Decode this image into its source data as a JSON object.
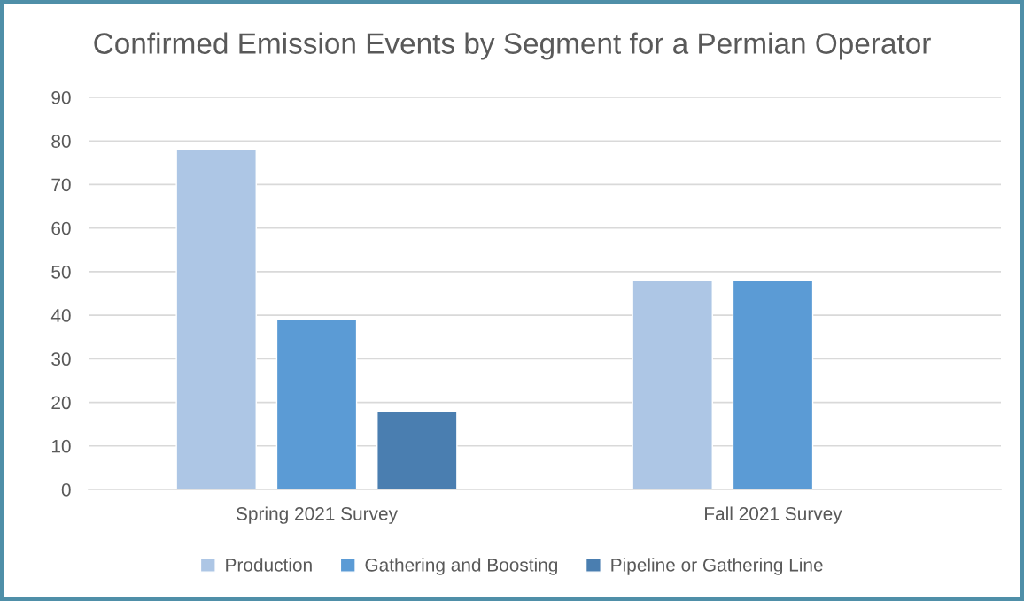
{
  "chart_data": {
    "type": "bar",
    "title": "Confirmed Emission Events by Segment for a Permian Operator",
    "categories": [
      "Spring 2021 Survey",
      "Fall 2021 Survey"
    ],
    "series": [
      {
        "name": "Production",
        "color": "#adc6e5",
        "values": [
          78,
          48
        ]
      },
      {
        "name": "Gathering and Boosting",
        "color": "#5b9bd5",
        "values": [
          39,
          48
        ]
      },
      {
        "name": "Pipeline or Gathering Line",
        "color": "#4a7eb0",
        "values": [
          18,
          null
        ]
      }
    ],
    "ylim": [
      0,
      90
    ],
    "yticks": [
      0,
      10,
      20,
      30,
      40,
      50,
      60,
      70,
      80,
      90
    ],
    "grid": "y",
    "legend": "bottom"
  }
}
